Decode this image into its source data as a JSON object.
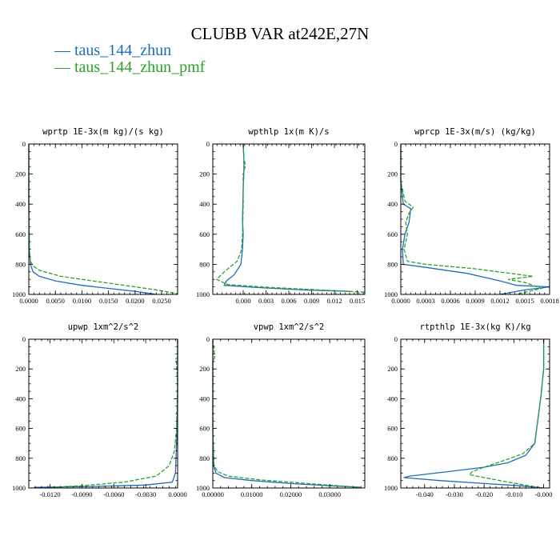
{
  "title": "CLUBB VAR at242E,27N",
  "legend": [
    {
      "label": "taus_144_zhun",
      "color": "#1f6eb4"
    },
    {
      "label": "taus_144_zhun_pmf",
      "color": "#2ca02c"
    }
  ],
  "colors": {
    "series_1": "#1f6eb4",
    "series_2": "#2ca02c"
  },
  "chart_data": [
    {
      "type": "line",
      "title": "wprtp  1E-3x(m kg)/(s kg)",
      "xlim": [
        0,
        0.028
      ],
      "ylim": [
        1000,
        0
      ],
      "xticks": [
        "0.0000",
        "0.0050",
        "0.0100",
        "0.0150",
        "0.0200",
        "0.0250"
      ],
      "xtick_values": [
        0,
        0.005,
        0.01,
        0.015,
        0.02,
        0.025
      ],
      "yticks": [
        "0",
        "200",
        "400",
        "600",
        "800",
        "1000"
      ],
      "ytick_values": [
        0,
        200,
        400,
        600,
        800,
        1000
      ],
      "series": [
        {
          "name": "taus_144_zhun",
          "points": [
            [
              0,
              0
            ],
            [
              0,
              400
            ],
            [
              0.0001,
              700
            ],
            [
              0.0003,
              800
            ],
            [
              0.0008,
              850
            ],
            [
              0.002,
              880
            ],
            [
              0.005,
              910
            ],
            [
              0.01,
              940
            ],
            [
              0.015,
              960
            ],
            [
              0.02,
              980
            ],
            [
              0.024,
              1000
            ]
          ]
        },
        {
          "name": "taus_144_zhun_pmf",
          "points": [
            [
              0,
              0
            ],
            [
              0,
              400
            ],
            [
              0.0001,
              700
            ],
            [
              0.0003,
              780
            ],
            [
              0.0008,
              810
            ],
            [
              0.002,
              840
            ],
            [
              0.006,
              880
            ],
            [
              0.012,
              910
            ],
            [
              0.018,
              940
            ],
            [
              0.024,
              970
            ],
            [
              0.028,
              995
            ]
          ]
        }
      ]
    },
    {
      "type": "line",
      "title": "wpthlp  1x(m K)/s",
      "xlim": [
        -0.004,
        0.016
      ],
      "ylim": [
        1000,
        0
      ],
      "xticks": [
        "0.000",
        "0.003",
        "0.006",
        "0.009",
        "0.012",
        "0.015"
      ],
      "xtick_values": [
        0,
        0.003,
        0.006,
        0.009,
        0.012,
        0.015
      ],
      "yticks": [
        "0",
        "200",
        "400",
        "600",
        "800",
        "1000"
      ],
      "ytick_values": [
        0,
        200,
        400,
        600,
        800,
        1000
      ],
      "series": [
        {
          "name": "taus_144_zhun",
          "points": [
            [
              0,
              0
            ],
            [
              0.0001,
              100
            ],
            [
              0.0001,
              180
            ],
            [
              0,
              300
            ],
            [
              -0.0001,
              500
            ],
            [
              0,
              600
            ],
            [
              -0.0001,
              700
            ],
            [
              -0.0003,
              800
            ],
            [
              -0.0012,
              870
            ],
            [
              -0.0022,
              910
            ],
            [
              -0.0025,
              940
            ],
            [
              0.002,
              955
            ],
            [
              0.008,
              970
            ],
            [
              0.014,
              980
            ]
          ]
        },
        {
          "name": "taus_144_zhun_pmf",
          "points": [
            [
              0,
              0
            ],
            [
              0.0001,
              100
            ],
            [
              0.0003,
              140
            ],
            [
              0,
              200
            ],
            [
              0,
              400
            ],
            [
              -0.0001,
              600
            ],
            [
              -0.0002,
              700
            ],
            [
              -0.0008,
              780
            ],
            [
              -0.0025,
              850
            ],
            [
              -0.0035,
              900
            ],
            [
              -0.002,
              935
            ],
            [
              0.004,
              955
            ],
            [
              0.01,
              970
            ],
            [
              0.016,
              985
            ]
          ]
        }
      ]
    },
    {
      "type": "line",
      "title": "wprcp  1E-3x(m/s) (kg/kg)",
      "xlim": [
        0,
        0.0018
      ],
      "ylim": [
        1000,
        0
      ],
      "xticks": [
        "0.0000",
        "0.0003",
        "0.0006",
        "0.0009",
        "0.0012",
        "0.0015",
        "0.0018"
      ],
      "xtick_values": [
        0,
        0.0003,
        0.0006,
        0.0009,
        0.0012,
        0.0015,
        0.0018
      ],
      "yticks": [
        "0",
        "200",
        "400",
        "600",
        "800",
        "1000"
      ],
      "ytick_values": [
        0,
        200,
        400,
        600,
        800,
        1000
      ],
      "series": [
        {
          "name": "taus_144_zhun",
          "points": [
            [
              0,
              0
            ],
            [
              0,
              250
            ],
            [
              3e-05,
              400
            ],
            [
              0.00012,
              430
            ],
            [
              0.0001,
              520
            ],
            [
              5e-05,
              600
            ],
            [
              2e-05,
              700
            ],
            [
              3e-05,
              800
            ],
            [
              0.0003,
              820
            ],
            [
              0.0008,
              860
            ],
            [
              0.0012,
              910
            ],
            [
              0.0014,
              940
            ],
            [
              0.0018,
              950
            ],
            [
              0.0015,
              970
            ],
            [
              0.0012,
              1000
            ]
          ]
        },
        {
          "name": "taus_144_zhun_pmf",
          "points": [
            [
              0,
              0
            ],
            [
              0,
              250
            ],
            [
              5e-05,
              380
            ],
            [
              0.00015,
              420
            ],
            [
              0.0001,
              460
            ],
            [
              6e-05,
              520
            ],
            [
              8e-05,
              600
            ],
            [
              4e-05,
              700
            ],
            [
              8e-05,
              780
            ],
            [
              0.0003,
              800
            ],
            [
              0.0009,
              830
            ],
            [
              0.0016,
              880
            ],
            [
              0.0013,
              900
            ],
            [
              0.0015,
              920
            ],
            [
              0.0017,
              960
            ],
            [
              0.0014,
              1000
            ]
          ]
        }
      ]
    },
    {
      "type": "line",
      "title": "upwp  1xm^2/s^2",
      "xlim": [
        -0.014,
        0.0
      ],
      "ylim": [
        1000,
        0
      ],
      "xticks": [
        "-0.0120",
        "-0.0090",
        "-0.0060",
        "-0.0030",
        "0.0000"
      ],
      "xtick_values": [
        -0.012,
        -0.009,
        -0.006,
        -0.003,
        0
      ],
      "yticks": [
        "0",
        "200",
        "400",
        "600",
        "800",
        "1000"
      ],
      "ytick_values": [
        0,
        200,
        400,
        600,
        800,
        1000
      ],
      "series": [
        {
          "name": "taus_144_zhun",
          "points": [
            [
              0,
              0
            ],
            [
              0,
              400
            ],
            [
              -0.0001,
              700
            ],
            [
              -0.0002,
              900
            ],
            [
              -0.0005,
              960
            ],
            [
              -0.003,
              980
            ],
            [
              -0.008,
              990
            ],
            [
              -0.0135,
              995
            ]
          ]
        },
        {
          "name": "taus_144_zhun_pmf",
          "points": [
            [
              0,
              0
            ],
            [
              0,
              120
            ],
            [
              -0.0002,
              140
            ],
            [
              -0.0001,
              160
            ],
            [
              0,
              300
            ],
            [
              -0.0001,
              600
            ],
            [
              -0.0003,
              750
            ],
            [
              -0.0008,
              850
            ],
            [
              -0.002,
              920
            ],
            [
              -0.005,
              960
            ],
            [
              -0.009,
              985
            ],
            [
              -0.012,
              995
            ]
          ]
        }
      ]
    },
    {
      "type": "line",
      "title": "vpwp  1xm^2/s^2",
      "xlim": [
        0,
        0.039
      ],
      "ylim": [
        1000,
        0
      ],
      "xticks": [
        "0.00000",
        "0.01000",
        "0.02000",
        "0.03000"
      ],
      "xtick_values": [
        0,
        0.01,
        0.02,
        0.03
      ],
      "yticks": [
        "0",
        "200",
        "400",
        "600",
        "800",
        "1000"
      ],
      "ytick_values": [
        0,
        200,
        400,
        600,
        800,
        1000
      ],
      "series": [
        {
          "name": "taus_144_zhun",
          "points": [
            [
              0,
              0
            ],
            [
              0,
              600
            ],
            [
              0.0002,
              850
            ],
            [
              0.0008,
              900
            ],
            [
              0.003,
              930
            ],
            [
              0.01,
              950
            ],
            [
              0.02,
              970
            ],
            [
              0.03,
              985
            ],
            [
              0.038,
              995
            ]
          ]
        },
        {
          "name": "taus_144_zhun_pmf",
          "points": [
            [
              0,
              0
            ],
            [
              0.0005,
              120
            ],
            [
              0,
              160
            ],
            [
              0,
              600
            ],
            [
              0.0003,
              850
            ],
            [
              0.0012,
              890
            ],
            [
              0.004,
              920
            ],
            [
              0.012,
              945
            ],
            [
              0.022,
              965
            ],
            [
              0.032,
              985
            ],
            [
              0.038,
              995
            ]
          ]
        }
      ]
    },
    {
      "type": "line",
      "title": "rtpthlp  1E-3x(kg K)/kg",
      "xlim": [
        -0.048,
        0.002
      ],
      "ylim": [
        1000,
        0
      ],
      "xticks": [
        "-0.040",
        "-0.030",
        "-0.020",
        "-0.010",
        "-0.000"
      ],
      "xtick_values": [
        -0.04,
        -0.03,
        -0.02,
        -0.01,
        0
      ],
      "yticks": [
        "0",
        "200",
        "400",
        "600",
        "800",
        "1000"
      ],
      "ytick_values": [
        0,
        200,
        400,
        600,
        800,
        1000
      ],
      "series": [
        {
          "name": "taus_144_zhun",
          "points": [
            [
              0,
              0
            ],
            [
              0,
              200
            ],
            [
              -0.001,
              400
            ],
            [
              -0.002,
              550
            ],
            [
              -0.003,
              700
            ],
            [
              -0.006,
              780
            ],
            [
              -0.012,
              830
            ],
            [
              -0.02,
              860
            ],
            [
              -0.032,
              890
            ],
            [
              -0.045,
              920
            ],
            [
              -0.047,
              930
            ],
            [
              -0.035,
              950
            ],
            [
              -0.02,
              970
            ],
            [
              -0.008,
              985
            ],
            [
              0,
              1000
            ]
          ]
        },
        {
          "name": "taus_144_zhun_pmf",
          "points": [
            [
              0,
              0
            ],
            [
              0,
              200
            ],
            [
              -0.001,
              400
            ],
            [
              -0.002,
              550
            ],
            [
              -0.003,
              700
            ],
            [
              -0.007,
              770
            ],
            [
              -0.014,
              820
            ],
            [
              -0.02,
              860
            ],
            [
              -0.024,
              890
            ],
            [
              -0.025,
              910
            ],
            [
              -0.02,
              930
            ],
            [
              -0.012,
              960
            ],
            [
              -0.005,
              985
            ],
            [
              0,
              1000
            ]
          ]
        }
      ]
    }
  ]
}
